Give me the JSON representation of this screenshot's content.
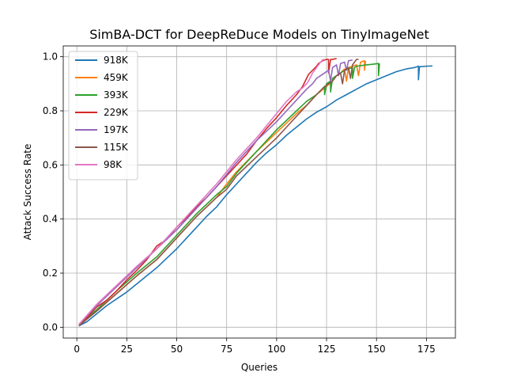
{
  "chart_data": {
    "type": "line",
    "title": "SimBA-DCT for DeepReDuce Models on TinyImageNet",
    "xlabel": "Queries",
    "ylabel": "Attack Success Rate",
    "xlim": [
      -6.8,
      189.5
    ],
    "ylim": [
      -0.04,
      1.04
    ],
    "xticks": [
      0,
      25,
      50,
      75,
      100,
      125,
      150,
      175
    ],
    "xtick_labels": [
      "0",
      "25",
      "50",
      "75",
      "100",
      "125",
      "150",
      "175"
    ],
    "yticks": [
      0.0,
      0.2,
      0.4,
      0.6,
      0.8,
      1.0
    ],
    "ytick_labels": [
      "0.0",
      "0.2",
      "0.4",
      "0.6",
      "0.8",
      "1.0"
    ],
    "grid": true,
    "legend_position": "upper-left",
    "series": [
      {
        "name": "918K",
        "color": "#1f77b4",
        "points": [
          [
            1,
            0.005
          ],
          [
            5,
            0.02
          ],
          [
            10,
            0.05
          ],
          [
            15,
            0.08
          ],
          [
            20,
            0.105
          ],
          [
            25,
            0.13
          ],
          [
            30,
            0.16
          ],
          [
            35,
            0.19
          ],
          [
            40,
            0.22
          ],
          [
            45,
            0.255
          ],
          [
            50,
            0.29
          ],
          [
            55,
            0.33
          ],
          [
            60,
            0.37
          ],
          [
            65,
            0.41
          ],
          [
            70,
            0.445
          ],
          [
            75,
            0.49
          ],
          [
            80,
            0.53
          ],
          [
            85,
            0.57
          ],
          [
            90,
            0.61
          ],
          [
            95,
            0.645
          ],
          [
            100,
            0.675
          ],
          [
            105,
            0.71
          ],
          [
            110,
            0.74
          ],
          [
            115,
            0.77
          ],
          [
            120,
            0.795
          ],
          [
            125,
            0.815
          ],
          [
            130,
            0.84
          ],
          [
            135,
            0.86
          ],
          [
            140,
            0.88
          ],
          [
            145,
            0.9
          ],
          [
            150,
            0.915
          ],
          [
            155,
            0.93
          ],
          [
            160,
            0.945
          ],
          [
            165,
            0.955
          ],
          [
            169,
            0.96
          ],
          [
            171,
            0.965
          ],
          [
            171,
            0.915
          ],
          [
            171.5,
            0.963
          ],
          [
            175,
            0.965
          ],
          [
            178,
            0.966
          ]
        ]
      },
      {
        "name": "459K",
        "color": "#ff7f0e",
        "points": [
          [
            1,
            0.01
          ],
          [
            10,
            0.06
          ],
          [
            20,
            0.125
          ],
          [
            30,
            0.19
          ],
          [
            40,
            0.25
          ],
          [
            50,
            0.33
          ],
          [
            60,
            0.41
          ],
          [
            70,
            0.48
          ],
          [
            75,
            0.53
          ],
          [
            80,
            0.575
          ],
          [
            90,
            0.65
          ],
          [
            100,
            0.72
          ],
          [
            110,
            0.79
          ],
          [
            115,
            0.82
          ],
          [
            120,
            0.86
          ],
          [
            125,
            0.89
          ],
          [
            128,
            0.91
          ],
          [
            130,
            0.93
          ],
          [
            132,
            0.94
          ],
          [
            134,
            0.955
          ],
          [
            135,
            0.91
          ],
          [
            136,
            0.96
          ],
          [
            138,
            0.965
          ],
          [
            140,
            0.97
          ],
          [
            141,
            0.93
          ],
          [
            142,
            0.98
          ],
          [
            144,
            0.985
          ],
          [
            144,
            0.95
          ],
          [
            144.5,
            0.985
          ]
        ]
      },
      {
        "name": "393K",
        "color": "#2ca02c",
        "points": [
          [
            1,
            0.01
          ],
          [
            10,
            0.065
          ],
          [
            20,
            0.135
          ],
          [
            30,
            0.2
          ],
          [
            40,
            0.26
          ],
          [
            50,
            0.34
          ],
          [
            60,
            0.42
          ],
          [
            70,
            0.49
          ],
          [
            75,
            0.52
          ],
          [
            80,
            0.57
          ],
          [
            90,
            0.65
          ],
          [
            100,
            0.73
          ],
          [
            110,
            0.8
          ],
          [
            115,
            0.835
          ],
          [
            120,
            0.86
          ],
          [
            122,
            0.875
          ],
          [
            124,
            0.89
          ],
          [
            124,
            0.86
          ],
          [
            125,
            0.9
          ],
          [
            127,
            0.91
          ],
          [
            127,
            0.87
          ],
          [
            128,
            0.92
          ],
          [
            130,
            0.93
          ],
          [
            132,
            0.94
          ],
          [
            134,
            0.95
          ],
          [
            136,
            0.955
          ],
          [
            138,
            0.96
          ],
          [
            138,
            0.92
          ],
          [
            139,
            0.96
          ],
          [
            140,
            0.965
          ],
          [
            145,
            0.97
          ],
          [
            148,
            0.972
          ],
          [
            151,
            0.975
          ],
          [
            151,
            0.93
          ],
          [
            151.5,
            0.975
          ]
        ]
      },
      {
        "name": "229K",
        "color": "#d62728",
        "points": [
          [
            1,
            0.01
          ],
          [
            5,
            0.035
          ],
          [
            10,
            0.075
          ],
          [
            15,
            0.1
          ],
          [
            20,
            0.135
          ],
          [
            25,
            0.175
          ],
          [
            30,
            0.21
          ],
          [
            35,
            0.25
          ],
          [
            40,
            0.3
          ],
          [
            45,
            0.325
          ],
          [
            50,
            0.37
          ],
          [
            55,
            0.405
          ],
          [
            60,
            0.445
          ],
          [
            65,
            0.48
          ],
          [
            70,
            0.52
          ],
          [
            75,
            0.56
          ],
          [
            80,
            0.6
          ],
          [
            85,
            0.64
          ],
          [
            90,
            0.69
          ],
          [
            95,
            0.735
          ],
          [
            100,
            0.775
          ],
          [
            105,
            0.82
          ],
          [
            110,
            0.86
          ],
          [
            113,
            0.89
          ],
          [
            115,
            0.92
          ],
          [
            116,
            0.935
          ],
          [
            118,
            0.95
          ],
          [
            120,
            0.965
          ],
          [
            121,
            0.975
          ],
          [
            122,
            0.98
          ],
          [
            123,
            0.985
          ],
          [
            124,
            0.988
          ],
          [
            125,
            0.99
          ],
          [
            126,
            0.99
          ],
          [
            126,
            0.94
          ],
          [
            127,
            0.99
          ],
          [
            128,
            0.99
          ],
          [
            129,
            0.992
          ],
          [
            130,
            0.993
          ]
        ]
      },
      {
        "name": "197K",
        "color": "#9467bd",
        "points": [
          [
            1,
            0.01
          ],
          [
            10,
            0.08
          ],
          [
            20,
            0.15
          ],
          [
            30,
            0.22
          ],
          [
            40,
            0.29
          ],
          [
            50,
            0.36
          ],
          [
            60,
            0.44
          ],
          [
            70,
            0.52
          ],
          [
            75,
            0.565
          ],
          [
            80,
            0.61
          ],
          [
            90,
            0.69
          ],
          [
            100,
            0.76
          ],
          [
            105,
            0.8
          ],
          [
            110,
            0.84
          ],
          [
            115,
            0.88
          ],
          [
            118,
            0.9
          ],
          [
            120,
            0.92
          ],
          [
            122,
            0.93
          ],
          [
            124,
            0.94
          ],
          [
            126,
            0.95
          ],
          [
            127,
            0.91
          ],
          [
            128,
            0.96
          ],
          [
            130,
            0.97
          ],
          [
            131,
            0.93
          ],
          [
            132,
            0.975
          ],
          [
            134,
            0.98
          ],
          [
            135,
            0.95
          ],
          [
            136,
            0.985
          ],
          [
            138,
            0.988
          ]
        ]
      },
      {
        "name": "115K",
        "color": "#8c564b",
        "points": [
          [
            1,
            0.005
          ],
          [
            10,
            0.06
          ],
          [
            20,
            0.125
          ],
          [
            30,
            0.19
          ],
          [
            40,
            0.25
          ],
          [
            50,
            0.33
          ],
          [
            60,
            0.41
          ],
          [
            70,
            0.48
          ],
          [
            75,
            0.51
          ],
          [
            80,
            0.56
          ],
          [
            90,
            0.63
          ],
          [
            100,
            0.7
          ],
          [
            105,
            0.74
          ],
          [
            110,
            0.78
          ],
          [
            115,
            0.82
          ],
          [
            120,
            0.86
          ],
          [
            124,
            0.89
          ],
          [
            126,
            0.9
          ],
          [
            128,
            0.91
          ],
          [
            130,
            0.93
          ],
          [
            132,
            0.94
          ],
          [
            133,
            0.9
          ],
          [
            134,
            0.95
          ],
          [
            136,
            0.96
          ],
          [
            137,
            0.92
          ],
          [
            138,
            0.97
          ],
          [
            139,
            0.98
          ],
          [
            140,
            0.99
          ],
          [
            141,
            0.99
          ]
        ]
      },
      {
        "name": "98K",
        "color": "#e377c2",
        "points": [
          [
            1,
            0.01
          ],
          [
            10,
            0.085
          ],
          [
            20,
            0.155
          ],
          [
            30,
            0.225
          ],
          [
            40,
            0.29
          ],
          [
            50,
            0.37
          ],
          [
            60,
            0.45
          ],
          [
            70,
            0.53
          ],
          [
            75,
            0.575
          ],
          [
            80,
            0.62
          ],
          [
            90,
            0.7
          ],
          [
            100,
            0.79
          ],
          [
            105,
            0.835
          ],
          [
            110,
            0.87
          ],
          [
            113,
            0.885
          ],
          [
            115,
            0.9
          ],
          [
            116,
            0.91
          ],
          [
            117,
            0.925
          ],
          [
            118,
            0.94
          ],
          [
            119,
            0.95
          ],
          [
            120,
            0.96
          ],
          [
            121,
            0.97
          ],
          [
            122,
            0.98
          ],
          [
            123,
            0.988
          ],
          [
            124,
            0.99
          ]
        ]
      }
    ]
  }
}
